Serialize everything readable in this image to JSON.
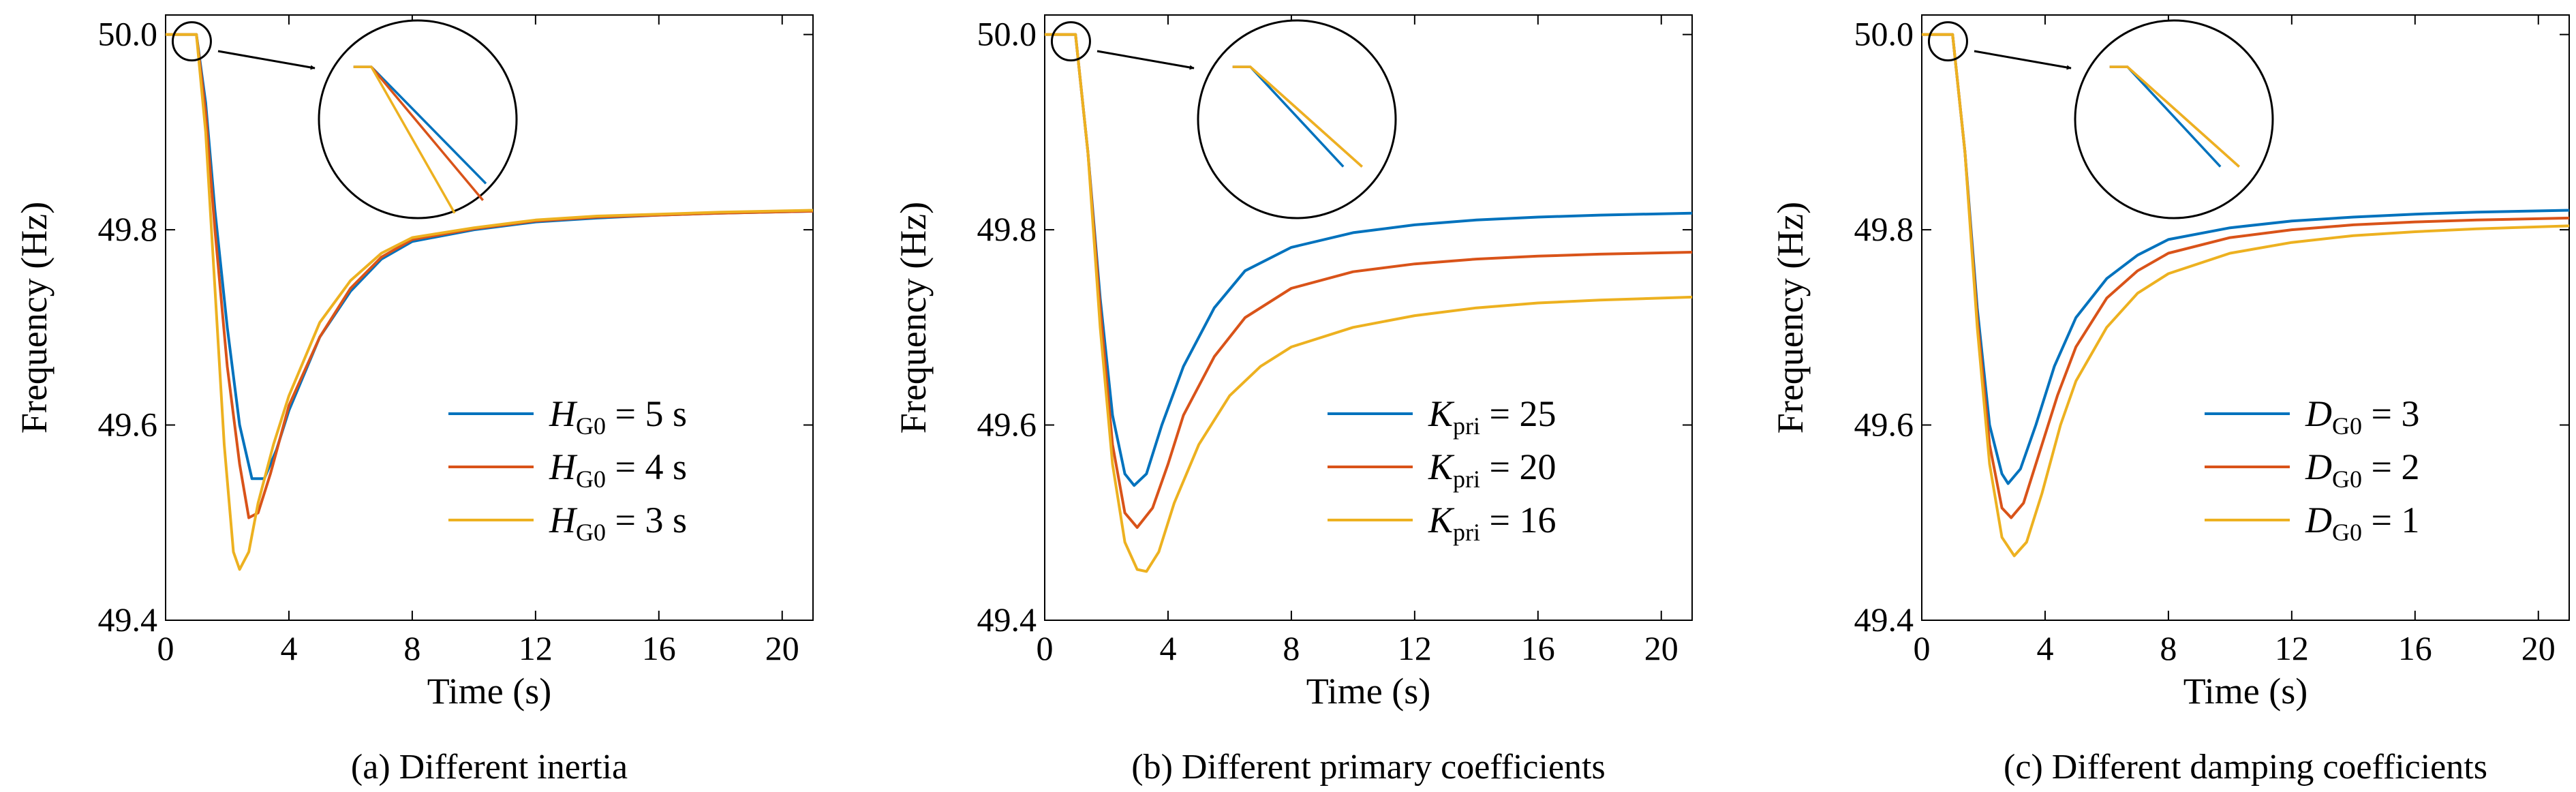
{
  "figure": {
    "colors": {
      "blue": "#0072BD",
      "red": "#D95319",
      "yellow": "#EDB120"
    }
  },
  "chart_data": [
    {
      "type": "line",
      "caption": "(a) Different inertia",
      "xlabel": "Time (s)",
      "ylabel": "Frequency (Hz)",
      "xlim": [
        0,
        21
      ],
      "ylim": [
        49.4,
        50.02
      ],
      "xticks": [
        0,
        4,
        8,
        12,
        16,
        20
      ],
      "yticks": [
        49.4,
        49.6,
        49.8,
        50.0
      ],
      "legend_position": "lower-right",
      "inset": "zoomed view of the initial frequency drop after t = 1 s",
      "series": [
        {
          "name": "H_G0 = 5 s",
          "sym": "H",
          "sub": "G0",
          "tail": " = 5 s",
          "color": "#0072BD",
          "x": [
            0,
            0.9,
            1.0,
            1.3,
            1.6,
            2.0,
            2.4,
            2.8,
            3.2,
            3.6,
            4.0,
            5.0,
            6.0,
            7.0,
            8.0,
            10.0,
            12.0,
            14.0,
            16.0,
            18.0,
            21.0
          ],
          "y": [
            50.0,
            50.0,
            50.0,
            49.93,
            49.82,
            49.7,
            49.6,
            49.545,
            49.545,
            49.575,
            49.615,
            49.69,
            49.737,
            49.77,
            49.788,
            49.8,
            49.808,
            49.812,
            49.815,
            49.817,
            49.819
          ]
        },
        {
          "name": "H_G0 = 4 s",
          "sym": "H",
          "sub": "G0",
          "tail": " = 4 s",
          "color": "#D95319",
          "x": [
            0,
            0.9,
            1.0,
            1.3,
            1.6,
            2.0,
            2.4,
            2.7,
            3.0,
            3.4,
            4.0,
            5.0,
            6.0,
            7.0,
            8.0,
            10.0,
            12.0,
            14.0,
            16.0,
            18.0,
            21.0
          ],
          "y": [
            50.0,
            50.0,
            50.0,
            49.92,
            49.8,
            49.66,
            49.56,
            49.505,
            49.51,
            49.55,
            49.62,
            49.69,
            49.74,
            49.772,
            49.79,
            49.801,
            49.809,
            49.813,
            49.815,
            49.817,
            49.819
          ]
        },
        {
          "name": "H_G0 = 3 s",
          "sym": "H",
          "sub": "G0",
          "tail": " = 3 s",
          "color": "#EDB120",
          "x": [
            0,
            0.9,
            1.0,
            1.3,
            1.6,
            1.9,
            2.2,
            2.4,
            2.7,
            3.0,
            3.5,
            4.0,
            5.0,
            6.0,
            7.0,
            8.0,
            10.0,
            12.0,
            14.0,
            16.0,
            18.0,
            21.0
          ],
          "y": [
            50.0,
            50.0,
            50.0,
            49.9,
            49.74,
            49.58,
            49.47,
            49.452,
            49.47,
            49.52,
            49.58,
            49.63,
            49.705,
            49.748,
            49.776,
            49.792,
            49.802,
            49.81,
            49.814,
            49.816,
            49.818,
            49.82
          ]
        }
      ]
    },
    {
      "type": "line",
      "caption": "(b) Different primary coefficients",
      "xlabel": "Time (s)",
      "ylabel": "Frequency (Hz)",
      "xlim": [
        0,
        21
      ],
      "ylim": [
        49.4,
        50.02
      ],
      "xticks": [
        0,
        4,
        8,
        12,
        16,
        20
      ],
      "yticks": [
        49.4,
        49.6,
        49.8,
        50.0
      ],
      "legend_position": "lower-right",
      "inset": "zoomed view of the initial frequency drop after t = 1 s",
      "series": [
        {
          "name": "K_pri = 25",
          "sym": "K",
          "sub": "pri",
          "tail": " = 25",
          "color": "#0072BD",
          "x": [
            0,
            0.9,
            1.0,
            1.4,
            1.8,
            2.2,
            2.6,
            2.9,
            3.3,
            3.8,
            4.5,
            5.5,
            6.5,
            8.0,
            10.0,
            12.0,
            14.0,
            16.0,
            18.0,
            21.0
          ],
          "y": [
            50.0,
            50.0,
            50.0,
            49.88,
            49.73,
            49.61,
            49.55,
            49.538,
            49.55,
            49.6,
            49.66,
            49.72,
            49.758,
            49.782,
            49.797,
            49.805,
            49.81,
            49.813,
            49.815,
            49.817
          ]
        },
        {
          "name": "K_pri = 20",
          "sym": "K",
          "sub": "pri",
          "tail": " = 20",
          "color": "#D95319",
          "x": [
            0,
            0.9,
            1.0,
            1.4,
            1.8,
            2.2,
            2.6,
            3.0,
            3.5,
            4.0,
            4.5,
            5.5,
            6.5,
            8.0,
            10.0,
            12.0,
            14.0,
            16.0,
            18.0,
            21.0
          ],
          "y": [
            50.0,
            50.0,
            50.0,
            49.88,
            49.72,
            49.58,
            49.51,
            49.495,
            49.515,
            49.56,
            49.61,
            49.67,
            49.71,
            49.74,
            49.757,
            49.765,
            49.77,
            49.773,
            49.775,
            49.777
          ]
        },
        {
          "name": "K_pri = 16",
          "sym": "K",
          "sub": "pri",
          "tail": " = 16",
          "color": "#EDB120",
          "x": [
            0,
            0.9,
            1.0,
            1.4,
            1.8,
            2.2,
            2.6,
            3.0,
            3.3,
            3.7,
            4.2,
            5.0,
            6.0,
            7.0,
            8.0,
            10.0,
            12.0,
            14.0,
            16.0,
            18.0,
            21.0
          ],
          "y": [
            50.0,
            50.0,
            50.0,
            49.88,
            49.7,
            49.56,
            49.48,
            49.452,
            49.45,
            49.47,
            49.52,
            49.58,
            49.63,
            49.66,
            49.68,
            49.7,
            49.712,
            49.72,
            49.725,
            49.728,
            49.731
          ]
        }
      ]
    },
    {
      "type": "line",
      "caption": "(c) Different damping coefficients",
      "xlabel": "Time (s)",
      "ylabel": "Frequency (Hz)",
      "xlim": [
        0,
        21
      ],
      "ylim": [
        49.4,
        50.02
      ],
      "xticks": [
        0,
        4,
        8,
        12,
        16,
        20
      ],
      "yticks": [
        49.4,
        49.6,
        49.8,
        50.0
      ],
      "legend_position": "lower-right",
      "inset": "zoomed view of the initial frequency drop after t = 1 s",
      "series": [
        {
          "name": "D_G0 = 3",
          "sym": "D",
          "sub": "G0",
          "tail": " = 3",
          "color": "#0072BD",
          "x": [
            0,
            0.9,
            1.0,
            1.4,
            1.8,
            2.2,
            2.6,
            2.8,
            3.2,
            3.7,
            4.3,
            5.0,
            6.0,
            7.0,
            8.0,
            10.0,
            12.0,
            14.0,
            16.0,
            18.0,
            21.0
          ],
          "y": [
            50.0,
            50.0,
            50.0,
            49.88,
            49.72,
            49.6,
            49.55,
            49.54,
            49.555,
            49.6,
            49.66,
            49.71,
            49.75,
            49.774,
            49.79,
            49.802,
            49.809,
            49.813,
            49.816,
            49.818,
            49.82
          ]
        },
        {
          "name": "D_G0 = 2",
          "sym": "D",
          "sub": "G0",
          "tail": " = 2",
          "color": "#D95319",
          "x": [
            0,
            0.9,
            1.0,
            1.4,
            1.8,
            2.2,
            2.6,
            2.9,
            3.3,
            3.8,
            4.4,
            5.0,
            6.0,
            7.0,
            8.0,
            10.0,
            12.0,
            14.0,
            16.0,
            18.0,
            21.0
          ],
          "y": [
            50.0,
            50.0,
            50.0,
            49.88,
            49.71,
            49.58,
            49.515,
            49.505,
            49.52,
            49.57,
            49.63,
            49.68,
            49.73,
            49.758,
            49.776,
            49.792,
            49.8,
            49.805,
            49.808,
            49.81,
            49.812
          ]
        },
        {
          "name": "D_G0 = 1",
          "sym": "D",
          "sub": "G0",
          "tail": " = 1",
          "color": "#EDB120",
          "x": [
            0,
            0.9,
            1.0,
            1.4,
            1.8,
            2.2,
            2.6,
            3.0,
            3.4,
            3.9,
            4.5,
            5.0,
            6.0,
            7.0,
            8.0,
            10.0,
            12.0,
            14.0,
            16.0,
            18.0,
            21.0
          ],
          "y": [
            50.0,
            50.0,
            50.0,
            49.88,
            49.7,
            49.56,
            49.485,
            49.466,
            49.48,
            49.53,
            49.6,
            49.645,
            49.7,
            49.735,
            49.755,
            49.776,
            49.787,
            49.794,
            49.798,
            49.801,
            49.804
          ]
        }
      ]
    }
  ]
}
